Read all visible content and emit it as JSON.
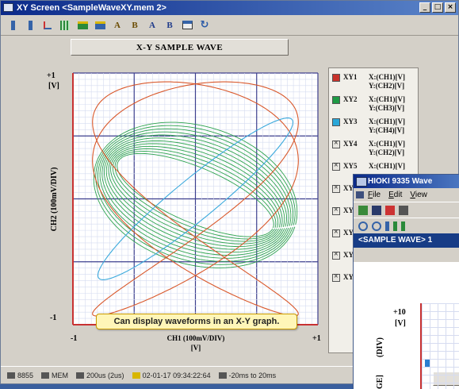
{
  "window": {
    "title": "XY Screen <SampleWaveXY.mem 2>",
    "controls": [
      "_",
      "□",
      "×"
    ]
  },
  "toolbar": {
    "icons": [
      "channel-1-icon",
      "channel-2-icon",
      "scale-icon",
      "grid-icon",
      "display-icon",
      "layout-icon",
      "cursor-a-icon",
      "cursor-b-icon",
      "cursor-a2-icon",
      "cursor-b2-icon",
      "print-icon",
      "refresh-icon"
    ],
    "labels": {
      "a1": "A",
      "b1": "B",
      "a2": "A",
      "b2": "B"
    }
  },
  "plot": {
    "title_button": "X-Y SAMPLE WAVE",
    "y_top": "+1",
    "y_unit": "[V]",
    "y_bottom": "-1",
    "x_left": "-1",
    "x_right": "+1",
    "x_label": "CH1 (100mV/DIV)",
    "x_unit": "[V]",
    "y_label": "CH2 (100mV/DIV)"
  },
  "legend": {
    "items": [
      {
        "name": "XY1",
        "x": "X:(CH1)[V]",
        "y": "Y:(CH2)[V]",
        "color": "#c8322a",
        "enabled": true
      },
      {
        "name": "XY2",
        "x": "X:(CH1)[V]",
        "y": "Y:(CH3)[V]",
        "color": "#1e9a44",
        "enabled": true
      },
      {
        "name": "XY3",
        "x": "X:(CH1)[V]",
        "y": "Y:(CH4)[V]",
        "color": "#2aa7d8",
        "enabled": true
      },
      {
        "name": "XY4",
        "x": "X:(CH1)[V]",
        "y": "Y:(CH2)[V]",
        "color": "",
        "enabled": false
      },
      {
        "name": "XY5",
        "x": "X:(CH1)[V]",
        "y": "",
        "color": "",
        "enabled": false
      },
      {
        "name": "XY",
        "x": "",
        "y": "",
        "color": "",
        "enabled": false
      },
      {
        "name": "XY",
        "x": "",
        "y": "",
        "color": "",
        "enabled": false
      },
      {
        "name": "XY",
        "x": "",
        "y": "",
        "color": "",
        "enabled": false
      },
      {
        "name": "XY",
        "x": "",
        "y": "",
        "color": "",
        "enabled": false
      },
      {
        "name": "XY",
        "x": "",
        "y": "",
        "color": "",
        "enabled": false
      }
    ]
  },
  "status": {
    "model": "8855",
    "mem": "MEM",
    "sampling": "200us (2us)",
    "timestamp": "02-01-17 09:34:22:64",
    "range": "-20ms to 20ms"
  },
  "hioki": {
    "title": "HIOKI 9335 Wave",
    "menu": [
      "File",
      "Edit",
      "View"
    ],
    "sample": "<SAMPLE WAVE> 1",
    "y_top": "+10",
    "y_unit": "[V]",
    "y_label": "(DIV)",
    "y_label2": "GE]"
  },
  "callout": "Can display waveforms in an X-Y graph.",
  "colors": {
    "xy1": "#d9582b",
    "xy2": "#2ea34f",
    "xy3": "#3aa9dc",
    "grid_minor": "#d6dcf0",
    "grid_major": "#3d3f8e",
    "axis": "#c83232"
  }
}
